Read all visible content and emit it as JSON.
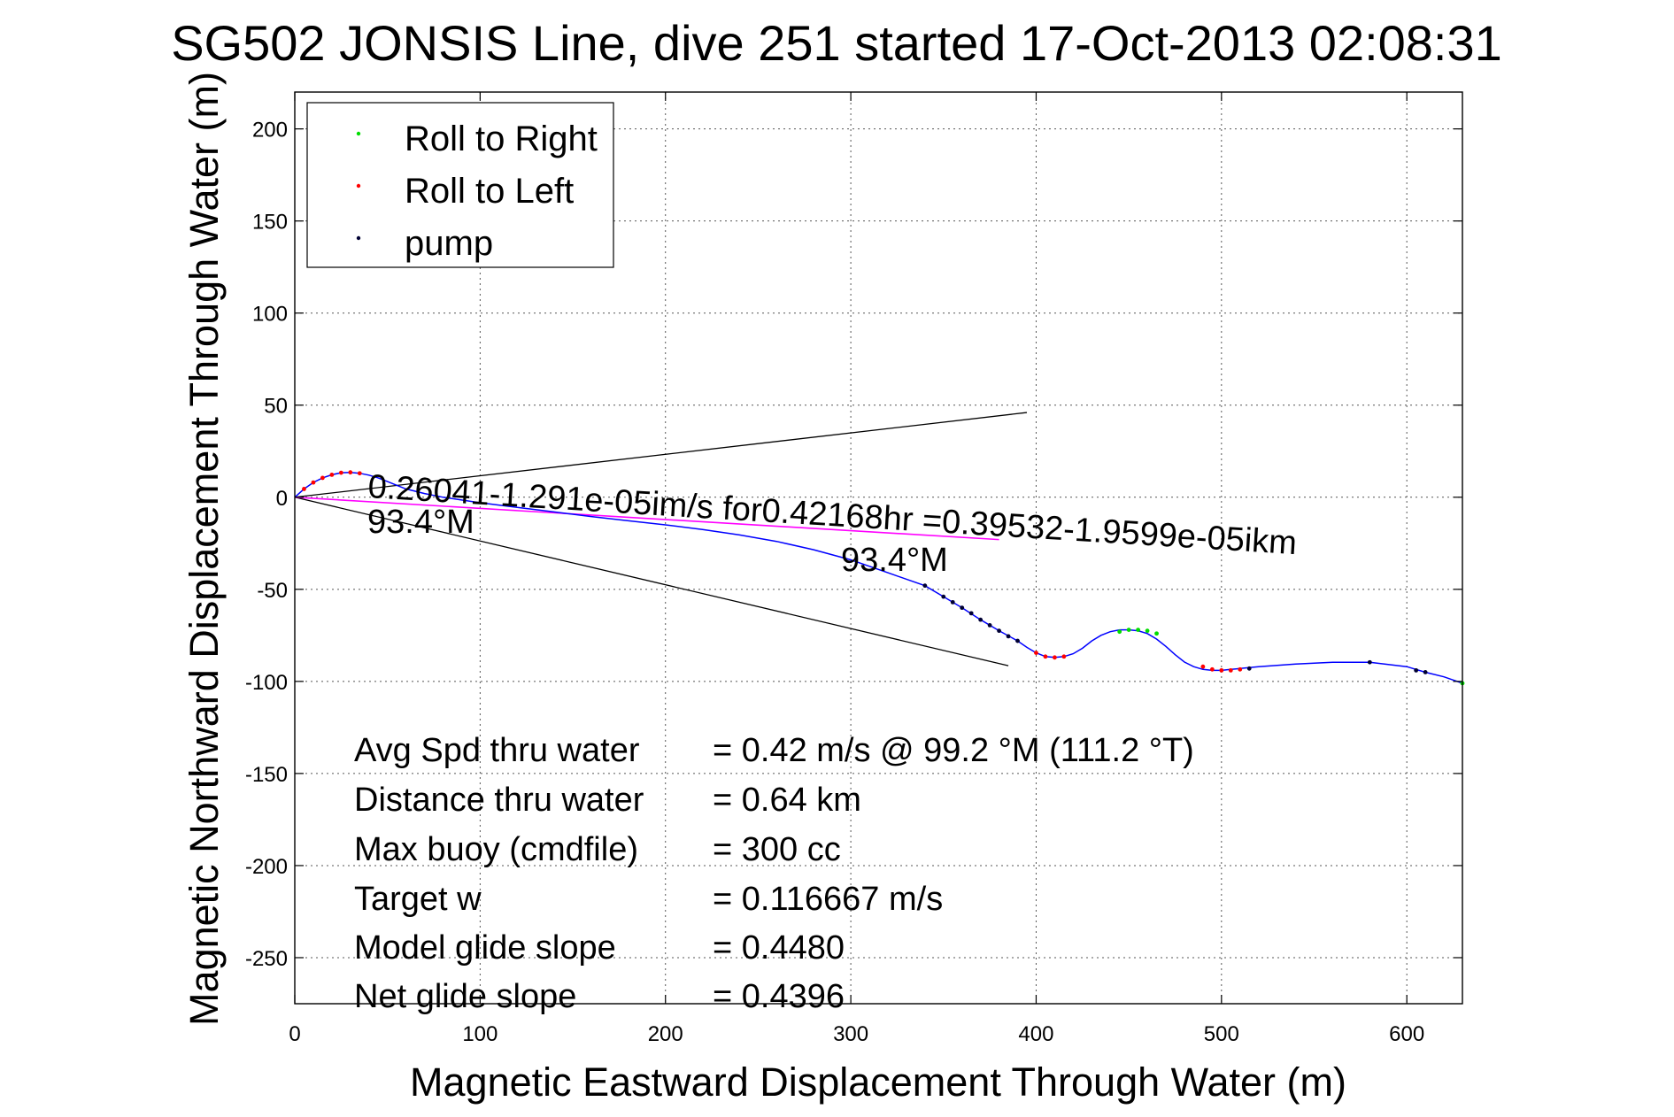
{
  "chart_data": {
    "type": "line",
    "title": "SG502 JONSIS Line, dive 251 started 17-Oct-2013 02:08:31",
    "xlabel": "Magnetic Eastward Displacement Through Water (m)",
    "ylabel": "Magnetic Northward Displacement Through Water (m)",
    "xlim": [
      0,
      630
    ],
    "ylim": [
      -275,
      220
    ],
    "xticks": [
      0,
      100,
      200,
      300,
      400,
      500,
      600
    ],
    "yticks": [
      200,
      150,
      100,
      50,
      0,
      -50,
      -100,
      -150,
      -200,
      -250
    ],
    "grid": true,
    "legend_position": "top-left",
    "colors": {
      "track": "#0000ff",
      "heading": "#ff00ff",
      "roll_right": "#00dd00",
      "roll_left": "#ff0000",
      "pump": "#000033",
      "cone": "#000000"
    },
    "legend": [
      {
        "label": "Roll to Right",
        "color": "#00dd00"
      },
      {
        "label": "Roll to Left",
        "color": "#ff0000"
      },
      {
        "label": "pump",
        "color": "#000033"
      }
    ],
    "track": {
      "x": [
        0,
        5,
        10,
        15,
        20,
        25,
        30,
        35,
        40,
        45,
        50,
        55,
        60,
        70,
        80,
        90,
        100,
        120,
        140,
        160,
        180,
        200,
        220,
        240,
        260,
        280,
        300,
        320,
        340,
        350,
        360,
        370,
        380,
        390,
        395,
        400,
        405,
        410,
        415,
        420,
        425,
        430,
        435,
        440,
        445,
        450,
        455,
        460,
        465,
        470,
        475,
        480,
        485,
        490,
        495,
        500,
        505,
        510,
        515,
        520,
        530,
        540,
        560,
        580,
        600,
        610,
        620,
        630
      ],
      "y": [
        0,
        4.5,
        8,
        10.5,
        12.2,
        13.3,
        13.5,
        13,
        12,
        10.5,
        8.5,
        6.5,
        4.5,
        2,
        0,
        -1.5,
        -3,
        -5.5,
        -8,
        -10.5,
        -12.8,
        -15,
        -17.5,
        -20.5,
        -24,
        -28.5,
        -34,
        -41,
        -48,
        -54,
        -60,
        -66.5,
        -72.5,
        -78,
        -81.5,
        -84.5,
        -86.5,
        -87,
        -86.5,
        -85,
        -82,
        -78,
        -75,
        -73,
        -72,
        -72,
        -72.5,
        -74,
        -77,
        -81,
        -85.5,
        -89.5,
        -92,
        -93.5,
        -94,
        -94,
        -93.5,
        -93,
        -92.5,
        -92,
        -91.3,
        -90.6,
        -89.6,
        -89.6,
        -92,
        -95,
        -97.5,
        -101
      ]
    },
    "heading_line": {
      "x": [
        0,
        380
      ],
      "y": [
        0,
        -23
      ]
    },
    "cone": {
      "upper": {
        "x": [
          0,
          395
        ],
        "y": [
          0,
          46
        ]
      },
      "lower": {
        "x": [
          0,
          385
        ],
        "y": [
          0,
          -91.5
        ]
      }
    },
    "markers": [
      {
        "type": "roll_left",
        "x": [
          5,
          10,
          15,
          20,
          25,
          30,
          35
        ],
        "y": [
          4.5,
          8,
          10.5,
          12.2,
          13.3,
          13.5,
          13
        ]
      },
      {
        "type": "roll_left",
        "x": [
          400,
          405,
          410,
          415
        ],
        "y": [
          -84.5,
          -86.5,
          -87,
          -86.5
        ]
      },
      {
        "type": "roll_right",
        "x": [
          445,
          450,
          455,
          460,
          465
        ],
        "y": [
          -73,
          -72,
          -72,
          -72.5,
          -74
        ]
      },
      {
        "type": "roll_left",
        "x": [
          490,
          495,
          500,
          505,
          510
        ],
        "y": [
          -92,
          -93.5,
          -94,
          -94,
          -93.5
        ]
      },
      {
        "type": "roll_right",
        "x": [
          630
        ],
        "y": [
          -101
        ]
      },
      {
        "type": "pump",
        "x": [
          340,
          350,
          355,
          360,
          365,
          370,
          375,
          380,
          385,
          390,
          515,
          580,
          605,
          610
        ],
        "y": [
          -48,
          -54,
          -57,
          -60,
          -63,
          -66.5,
          -69.5,
          -72.5,
          -75.5,
          -78,
          -93,
          -89.6,
          -94,
          -95
        ]
      }
    ],
    "annotations": {
      "speed_label": "0.26041-1.291e-05im/s for0.42168hr =0.39532-1.9599e-05ikm",
      "heading_label_1": "93.4°M",
      "heading_label_2": "93.4°M"
    }
  },
  "stats": [
    {
      "label": "Avg Spd thru water",
      "value": "=  0.42 m/s @  99.2 °M (111.2 °T)"
    },
    {
      "label": "Distance thru water",
      "value": "=  0.64 km"
    },
    {
      "label": "Max buoy (cmdfile)",
      "value": "= 300 cc"
    },
    {
      "label": "Target w",
      "value": "= 0.116667 m/s"
    },
    {
      "label": "Model glide slope",
      "value": "= 0.4480"
    },
    {
      "label": "Net glide slope",
      "value": "= 0.4396"
    }
  ]
}
